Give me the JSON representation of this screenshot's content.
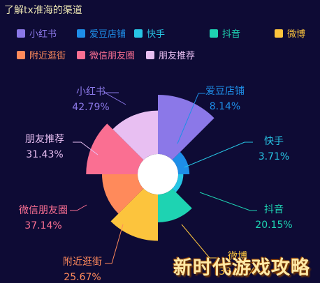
{
  "title": "了解tx淮海的渠道",
  "watermark": "新时代游戏攻略",
  "chart_data": {
    "type": "pie",
    "variant": "rose",
    "title": "了解tx淮海的渠道",
    "legend_position": "top-left",
    "series": [
      {
        "name": "小红书",
        "value": 42.79,
        "label": "42.79%",
        "color": "#8b78e8"
      },
      {
        "name": "爱豆店铺",
        "value": 8.14,
        "label": "8.14%",
        "color": "#1e8ee8"
      },
      {
        "name": "快手",
        "value": 3.71,
        "label": "3.71%",
        "color": "#27c5e5"
      },
      {
        "name": "抖音",
        "value": 20.15,
        "label": "20.15%",
        "color": "#1ed3b2"
      },
      {
        "name": "微博",
        "value": 33.46,
        "label": "33.46%",
        "color": "#fcc43d"
      },
      {
        "name": "附近逛街",
        "value": 25.67,
        "label": "25.67%",
        "color": "#ff8a5b"
      },
      {
        "name": "微信朋友圈",
        "value": 37.14,
        "label": "37.14%",
        "color": "#fa6f92"
      },
      {
        "name": "朋友推荐",
        "value": 31.43,
        "label": "31.43%",
        "color": "#e8bff2"
      }
    ]
  }
}
